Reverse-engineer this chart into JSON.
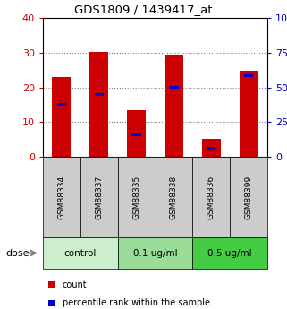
{
  "title": "GDS1809 / 1439417_at",
  "samples": [
    "GSM88334",
    "GSM88337",
    "GSM88335",
    "GSM88338",
    "GSM88336",
    "GSM88399"
  ],
  "red_values": [
    23.0,
    30.3,
    13.3,
    29.4,
    5.2,
    24.7
  ],
  "blue_values": [
    15.0,
    18.0,
    6.25,
    20.0,
    2.5,
    23.25
  ],
  "ylim_left": [
    0,
    40
  ],
  "ylim_right": [
    0,
    100
  ],
  "left_ticks": [
    0,
    10,
    20,
    30,
    40
  ],
  "right_ticks": [
    0,
    25,
    50,
    75,
    100
  ],
  "right_tick_labels": [
    "0",
    "25",
    "50",
    "75",
    "100%"
  ],
  "left_tick_color": "#cc0000",
  "right_tick_color": "#0000cc",
  "bar_width": 0.5,
  "red_color": "#cc0000",
  "blue_color": "#0000cc",
  "groups": [
    {
      "label": "control",
      "samples": [
        0,
        1
      ],
      "color": "#cceecc"
    },
    {
      "label": "0.1 ug/ml",
      "samples": [
        2,
        3
      ],
      "color": "#99dd99"
    },
    {
      "label": "0.5 ug/ml",
      "samples": [
        4,
        5
      ],
      "color": "#44cc44"
    }
  ],
  "dose_label": "dose",
  "legend_count_label": "count",
  "legend_percentile_label": "percentile rank within the sample",
  "grid_yticks": [
    10,
    20,
    30
  ],
  "bg_color": "#ffffff",
  "sample_box_color": "#cccccc"
}
